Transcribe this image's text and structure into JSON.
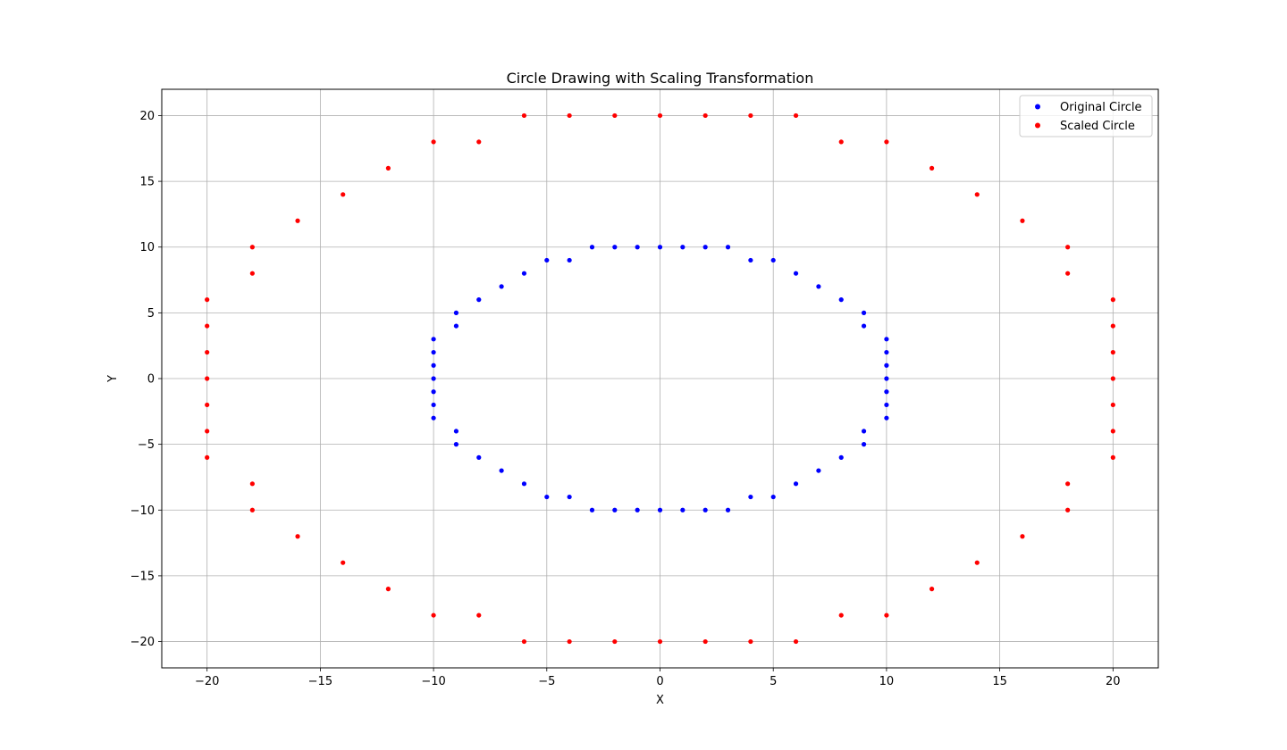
{
  "chart_data": {
    "type": "scatter",
    "title": "Circle Drawing with Scaling Transformation",
    "xlabel": "X",
    "ylabel": "Y",
    "xlim": [
      -22,
      22
    ],
    "ylim": [
      -22,
      22
    ],
    "xticks": [
      -20,
      -15,
      -10,
      -5,
      0,
      5,
      10,
      15,
      20
    ],
    "yticks": [
      -20,
      -15,
      -10,
      -5,
      0,
      5,
      10,
      15,
      20
    ],
    "grid": true,
    "legend_position": "top-right",
    "series": [
      {
        "name": "Original Circle",
        "color": "#0000ff",
        "points": [
          [
            0,
            10
          ],
          [
            1,
            10
          ],
          [
            2,
            10
          ],
          [
            3,
            10
          ],
          [
            4,
            9
          ],
          [
            5,
            9
          ],
          [
            6,
            8
          ],
          [
            7,
            7
          ],
          [
            8,
            6
          ],
          [
            9,
            5
          ],
          [
            9,
            4
          ],
          [
            10,
            3
          ],
          [
            10,
            2
          ],
          [
            10,
            1
          ],
          [
            10,
            0
          ],
          [
            10,
            -1
          ],
          [
            10,
            -2
          ],
          [
            10,
            -3
          ],
          [
            9,
            -4
          ],
          [
            9,
            -5
          ],
          [
            8,
            -6
          ],
          [
            7,
            -7
          ],
          [
            6,
            -8
          ],
          [
            5,
            -9
          ],
          [
            4,
            -9
          ],
          [
            3,
            -10
          ],
          [
            2,
            -10
          ],
          [
            1,
            -10
          ],
          [
            0,
            -10
          ],
          [
            -1,
            -10
          ],
          [
            -2,
            -10
          ],
          [
            -3,
            -10
          ],
          [
            -4,
            -9
          ],
          [
            -5,
            -9
          ],
          [
            -6,
            -8
          ],
          [
            -7,
            -7
          ],
          [
            -8,
            -6
          ],
          [
            -9,
            -5
          ],
          [
            -9,
            -4
          ],
          [
            -10,
            -3
          ],
          [
            -10,
            -2
          ],
          [
            -10,
            -1
          ],
          [
            -10,
            0
          ],
          [
            -10,
            1
          ],
          [
            -10,
            2
          ],
          [
            -10,
            3
          ],
          [
            -9,
            4
          ],
          [
            -9,
            5
          ],
          [
            -8,
            6
          ],
          [
            -7,
            7
          ],
          [
            -6,
            8
          ],
          [
            -5,
            9
          ],
          [
            -4,
            9
          ],
          [
            -3,
            10
          ],
          [
            -2,
            10
          ],
          [
            -1,
            10
          ]
        ]
      },
      {
        "name": "Scaled Circle",
        "color": "#ff0000",
        "points": [
          [
            0,
            20
          ],
          [
            2,
            20
          ],
          [
            4,
            20
          ],
          [
            6,
            20
          ],
          [
            8,
            18
          ],
          [
            10,
            18
          ],
          [
            12,
            16
          ],
          [
            14,
            14
          ],
          [
            16,
            12
          ],
          [
            18,
            10
          ],
          [
            18,
            8
          ],
          [
            20,
            6
          ],
          [
            20,
            4
          ],
          [
            20,
            2
          ],
          [
            20,
            0
          ],
          [
            20,
            -2
          ],
          [
            20,
            -4
          ],
          [
            20,
            -6
          ],
          [
            18,
            -8
          ],
          [
            18,
            -10
          ],
          [
            16,
            -12
          ],
          [
            14,
            -14
          ],
          [
            12,
            -16
          ],
          [
            10,
            -18
          ],
          [
            8,
            -18
          ],
          [
            6,
            -20
          ],
          [
            4,
            -20
          ],
          [
            2,
            -20
          ],
          [
            0,
            -20
          ],
          [
            -2,
            -20
          ],
          [
            -4,
            -20
          ],
          [
            -6,
            -20
          ],
          [
            -8,
            -18
          ],
          [
            -10,
            -18
          ],
          [
            -12,
            -16
          ],
          [
            -14,
            -14
          ],
          [
            -16,
            -12
          ],
          [
            -18,
            -10
          ],
          [
            -18,
            -8
          ],
          [
            -20,
            -6
          ],
          [
            -20,
            -4
          ],
          [
            -20,
            -2
          ],
          [
            -20,
            0
          ],
          [
            -20,
            2
          ],
          [
            -20,
            4
          ],
          [
            -20,
            6
          ],
          [
            -18,
            8
          ],
          [
            -18,
            10
          ],
          [
            -16,
            12
          ],
          [
            -14,
            14
          ],
          [
            -12,
            16
          ],
          [
            -10,
            18
          ],
          [
            -8,
            18
          ],
          [
            -6,
            20
          ],
          [
            -4,
            20
          ],
          [
            -2,
            20
          ]
        ]
      }
    ]
  }
}
